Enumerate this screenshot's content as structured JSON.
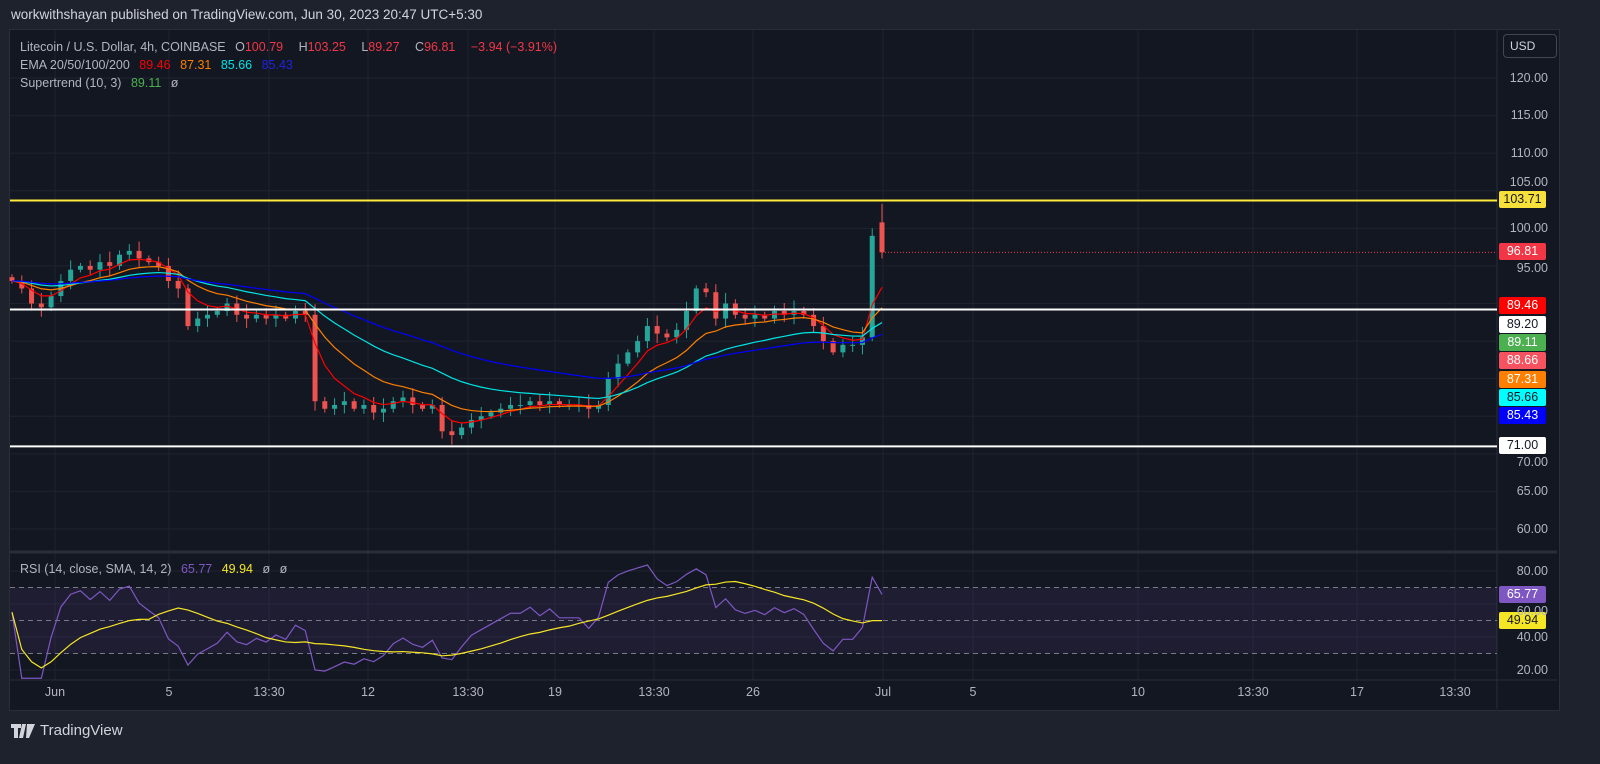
{
  "publish_line": "workwithshayan published on TradingView.com, Jun 30, 2023 20:47 UTC+5:30",
  "legend": {
    "symbol": "Litecoin / U.S. Dollar, 4h, COINBASE",
    "o_label": "O",
    "o": "100.79",
    "h_label": "H",
    "h": "103.25",
    "l_label": "L",
    "l": "89.27",
    "c_label": "C",
    "c": "96.81",
    "change": "−3.94 (−3.91%)",
    "ema_label": "EMA 20/50/100/200",
    "ema20": "89.46",
    "ema50": "87.31",
    "ema100": "85.66",
    "ema200": "85.43",
    "st_label": "Supertrend (10, 3)",
    "st": "89.11",
    "st_sym": "ø",
    "rsi_label": "RSI (14, close, SMA, 14, 2)",
    "rsi": "65.77",
    "rsi_sma": "49.94",
    "rsi_sym1": "ø",
    "rsi_sym2": "ø"
  },
  "currency_button": "USD",
  "brand": "TradingView",
  "colors": {
    "up": "#26a69a",
    "down": "#ef5350",
    "ema20": "#ff0000",
    "ema50": "#ff7f00",
    "ema100": "#00e5e5",
    "ema200": "#0000ff",
    "rsi": "#7e57c2",
    "rsi_sma": "#f5e625",
    "level_yellow": "#ffeb3b",
    "level_white": "#ffffff"
  },
  "price_tags": [
    {
      "value": "103.71",
      "bg": "#f7e03a",
      "fg": "#131722"
    },
    {
      "value": "96.81",
      "bg": "#f23645",
      "fg": "#ffffff"
    },
    {
      "value": "89.46",
      "bg": "#ff0000",
      "fg": "#ffffff"
    },
    {
      "value": "89.20",
      "bg": "#ffffff",
      "fg": "#131722"
    },
    {
      "value": "89.11",
      "bg": "#4caf50",
      "fg": "#ffffff"
    },
    {
      "value": "88.66",
      "bg": "#f7525f",
      "fg": "#ffffff"
    },
    {
      "value": "87.31",
      "bg": "#ff7f00",
      "fg": "#ffffff"
    },
    {
      "value": "85.66",
      "bg": "#00ffff",
      "fg": "#131722"
    },
    {
      "value": "85.43",
      "bg": "#0000ff",
      "fg": "#ffffff"
    },
    {
      "value": "71.00",
      "bg": "#ffffff",
      "fg": "#131722"
    }
  ],
  "rsi_tags": [
    {
      "value": "65.77",
      "bg": "#7e57c2",
      "fg": "#ffffff"
    },
    {
      "value": "49.94",
      "bg": "#f5e625",
      "fg": "#131722"
    }
  ],
  "chart_data": {
    "type": "candlestick",
    "title": "Litecoin / U.S. Dollar, 4h, COINBASE",
    "y_ticks": [
      "120.00",
      "115.00",
      "110.00",
      "105.00",
      "100.00",
      "95.00",
      "70.00",
      "65.00",
      "60.00"
    ],
    "ylim": [
      60,
      120
    ],
    "x_ticks": [
      "Jun",
      "5",
      "13:30",
      "12",
      "13:30",
      "19",
      "13:30",
      "26",
      "Jul",
      "5",
      "10",
      "13:30",
      "17",
      "13:30"
    ],
    "horizontal_levels": [
      103.71,
      89.2,
      71.0
    ],
    "last_price": 96.81,
    "last_open": 100.79,
    "last_high": 103.25,
    "closes": [
      93,
      92,
      90,
      89.5,
      91,
      93,
      94.5,
      95,
      94.5,
      95.5,
      95,
      96.5,
      97,
      96,
      95.5,
      95,
      93,
      92,
      87,
      88,
      88.5,
      89,
      90,
      88.5,
      88,
      88.5,
      88,
      88.5,
      88,
      89,
      88.5,
      77,
      76,
      76.5,
      77,
      76,
      76.5,
      75.5,
      76,
      77,
      77.5,
      76.5,
      76,
      76.5,
      73,
      72.5,
      73.5,
      74.5,
      75,
      75.5,
      76,
      76.5,
      76.5,
      77,
      76.5,
      77,
      76.5,
      76.5,
      76.5,
      76,
      76.5,
      80,
      82,
      83.5,
      85,
      87,
      86,
      85.5,
      86.5,
      89,
      92,
      91.5,
      88,
      90,
      88.5,
      88,
      88.5,
      88,
      89,
      88.5,
      89,
      88.5,
      87,
      85,
      83.5,
      84.5,
      84.5,
      85.5,
      99,
      96.81
    ],
    "rsi": {
      "y_ticks": [
        "80.00",
        "60.00",
        "40.00",
        "20.00"
      ],
      "ylim": [
        10,
        90
      ],
      "bands": [
        70,
        50,
        30
      ],
      "value": 65.77,
      "sma": 49.94
    }
  }
}
